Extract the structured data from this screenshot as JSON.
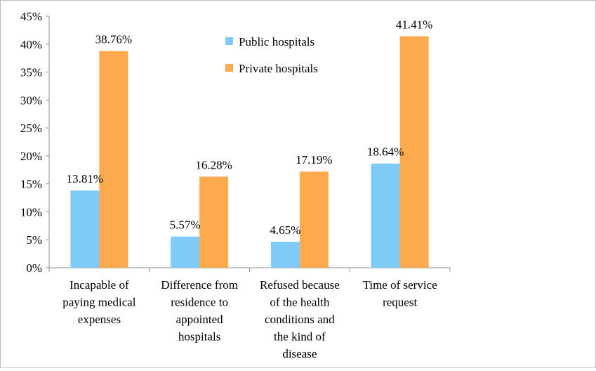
{
  "chart_data": {
    "type": "bar",
    "title": "",
    "xlabel": "",
    "ylabel": "",
    "ylim": [
      0,
      45
    ],
    "yticks": [
      "0%",
      "5%",
      "10%",
      "15%",
      "20%",
      "25%",
      "30%",
      "35%",
      "40%",
      "45%"
    ],
    "grid": false,
    "legend_position": "top-center",
    "categories": [
      [
        "Incapable of",
        "paying medical",
        "expenses"
      ],
      [
        "Difference from",
        "residence to",
        "appointed",
        "hospitals"
      ],
      [
        "Refused because",
        "of the health",
        "conditions and",
        "the kind of",
        "disease"
      ],
      [
        "Time of service",
        "request"
      ]
    ],
    "series": [
      {
        "name": "Public hospitals",
        "color": "#7fcbf8",
        "values": [
          13.81,
          5.57,
          4.65,
          18.64
        ],
        "labels": [
          "13.81%",
          "5.57%",
          "4.65%",
          "18.64%"
        ]
      },
      {
        "name": "Private hospitals",
        "color": "#fcaa4d",
        "values": [
          38.76,
          16.28,
          17.19,
          41.41
        ],
        "labels": [
          "38.76%",
          "16.28%",
          "17.19%",
          "41.41%"
        ]
      }
    ]
  }
}
